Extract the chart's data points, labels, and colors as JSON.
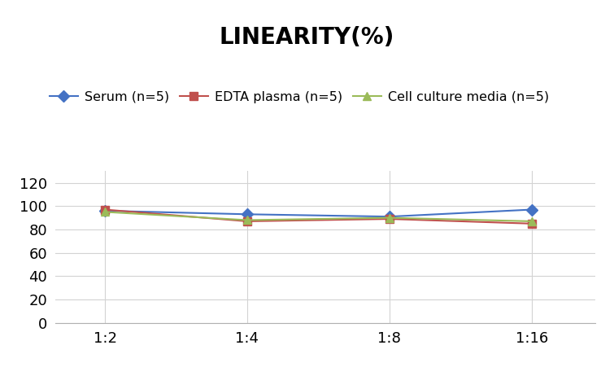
{
  "title": "LINEARITY(%)",
  "title_fontsize": 20,
  "title_fontweight": "bold",
  "x_labels": [
    "1:2",
    "1:4",
    "1:8",
    "1:16"
  ],
  "x_positions": [
    0,
    1,
    2,
    3
  ],
  "series": [
    {
      "label": "Serum (n=5)",
      "color": "#4472C4",
      "marker": "D",
      "markersize": 7,
      "values": [
        96,
        93,
        91,
        97
      ]
    },
    {
      "label": "EDTA plasma (n=5)",
      "color": "#C0504D",
      "marker": "s",
      "markersize": 7,
      "values": [
        97,
        87,
        89,
        85
      ]
    },
    {
      "label": "Cell culture media (n=5)",
      "color": "#9BBB59",
      "marker": "^",
      "markersize": 7,
      "values": [
        95,
        88,
        90,
        87
      ]
    }
  ],
  "ylim": [
    0,
    130
  ],
  "yticks": [
    0,
    20,
    40,
    60,
    80,
    100,
    120
  ],
  "grid_color": "#D3D3D3",
  "background_color": "#FFFFFF",
  "legend_fontsize": 11.5,
  "tick_fontsize": 13
}
